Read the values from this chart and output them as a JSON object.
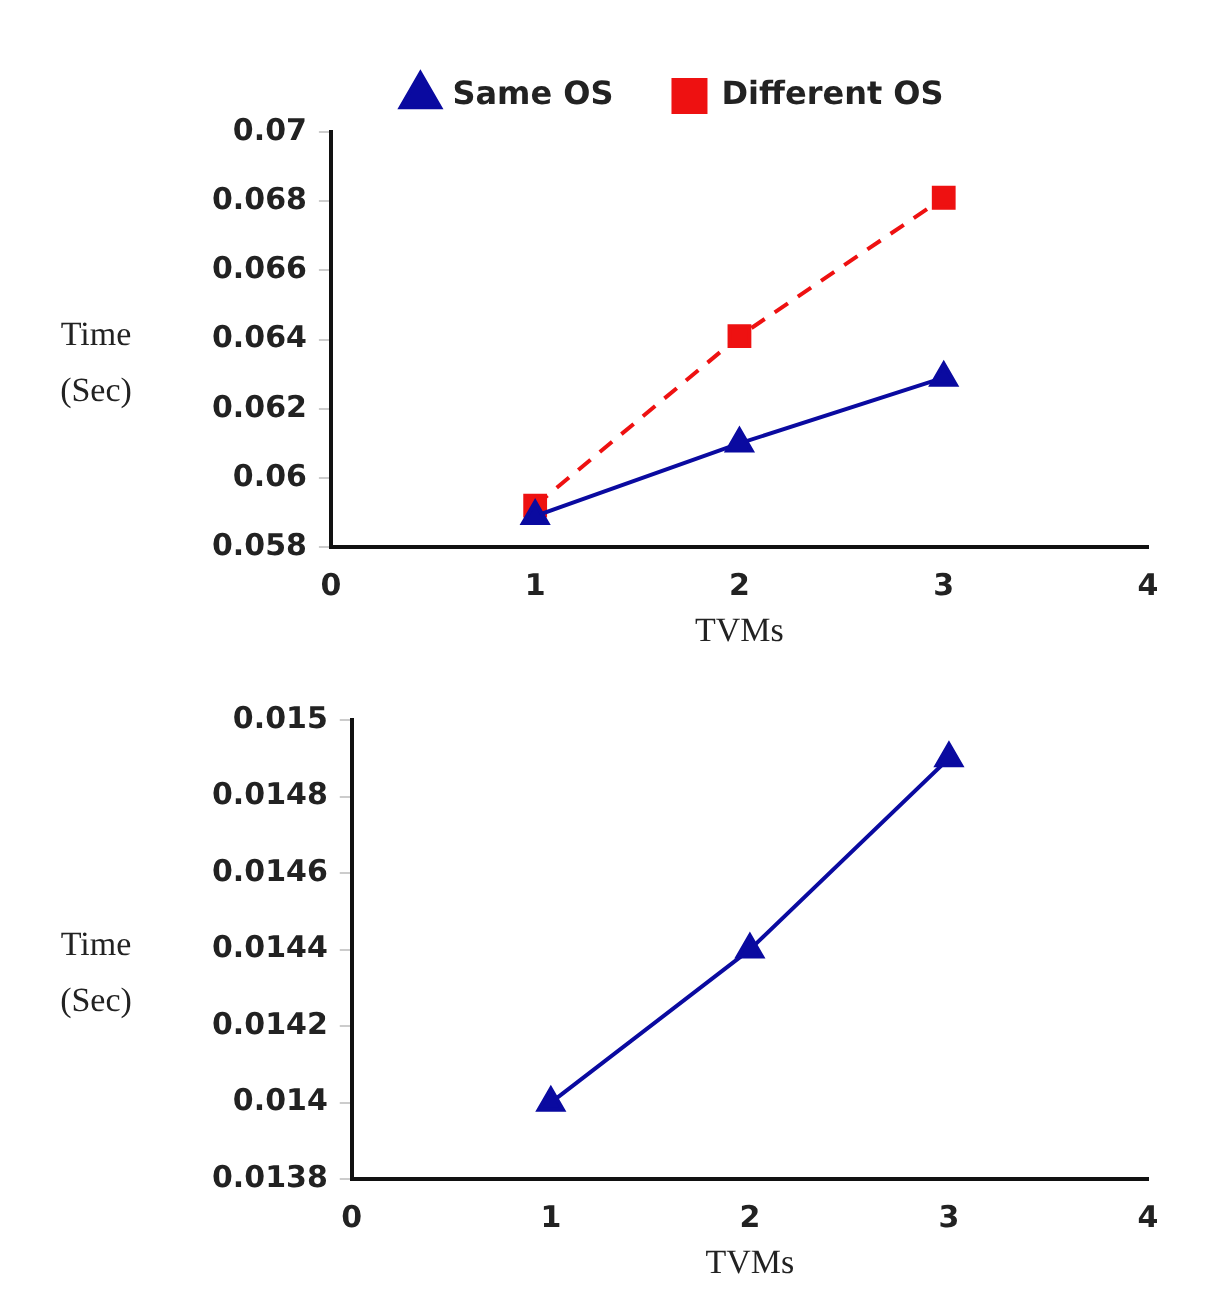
{
  "chart_data": [
    {
      "type": "line",
      "xlabel": "TVMs",
      "ylabel": "Time (Sec)",
      "x": [
        1,
        2,
        3
      ],
      "xlim": [
        0,
        4
      ],
      "xticks": [
        0,
        1,
        2,
        3,
        4
      ],
      "ylim": [
        0.058,
        0.07
      ],
      "yticks": [
        0.058,
        0.06,
        0.062,
        0.064,
        0.066,
        0.068,
        0.07
      ],
      "grid": false,
      "legend": "top",
      "series": [
        {
          "name": "Same OS",
          "color": "#0a0aa0",
          "values": [
            0.0589,
            0.061,
            0.0629
          ],
          "marker": "triangle",
          "line_style": "solid"
        },
        {
          "name": "Different OS",
          "color": "#ee1111",
          "values": [
            0.0592,
            0.0641,
            0.0681
          ],
          "marker": "square",
          "line_style": "dashed"
        }
      ]
    },
    {
      "type": "line",
      "xlabel": "TVMs",
      "ylabel": "Time (Sec)",
      "x": [
        1,
        2,
        3
      ],
      "xlim": [
        0,
        4
      ],
      "xticks": [
        0,
        1,
        2,
        3,
        4
      ],
      "ylim": [
        0.0138,
        0.015
      ],
      "yticks": [
        0.0138,
        0.014,
        0.0142,
        0.0144,
        0.0146,
        0.0148,
        0.015
      ],
      "grid": false,
      "series": [
        {
          "color": "#0a0aa0",
          "values": [
            0.014,
            0.0144,
            0.0149
          ],
          "marker": "triangle",
          "line_style": "solid"
        }
      ]
    }
  ]
}
